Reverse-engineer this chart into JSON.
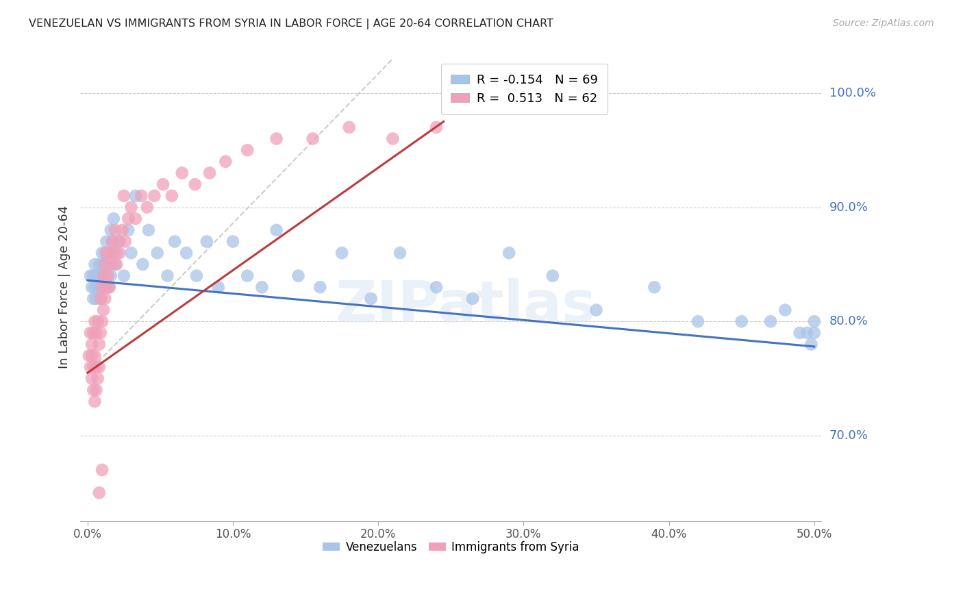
{
  "title": "VENEZUELAN VS IMMIGRANTS FROM SYRIA IN LABOR FORCE | AGE 20-64 CORRELATION CHART",
  "source": "Source: ZipAtlas.com",
  "ylabel": "In Labor Force | Age 20-64",
  "xlim": [
    -0.005,
    0.505
  ],
  "ylim": [
    0.625,
    1.035
  ],
  "xticks": [
    0.0,
    0.1,
    0.2,
    0.3,
    0.4,
    0.5
  ],
  "xticklabels": [
    "0.0%",
    "10.0%",
    "20.0%",
    "30.0%",
    "40.0%",
    "50.0%"
  ],
  "ytick_positions": [
    0.7,
    0.8,
    0.9,
    1.0
  ],
  "ytick_labels": [
    "70.0%",
    "80.0%",
    "90.0%",
    "100.0%"
  ],
  "legend_R1": "-0.154",
  "legend_N1": "69",
  "legend_R2": "0.513",
  "legend_N2": "62",
  "venezuelan_color": "#a8c4e8",
  "syria_color": "#f0a0b8",
  "trend_venezuelan_color": "#4472c4",
  "trend_syria_color": "#c0393b",
  "watermark": "ZIPatlas",
  "venezuelan_x": [
    0.002,
    0.003,
    0.004,
    0.004,
    0.005,
    0.005,
    0.006,
    0.006,
    0.007,
    0.007,
    0.008,
    0.008,
    0.009,
    0.009,
    0.01,
    0.01,
    0.011,
    0.011,
    0.012,
    0.012,
    0.013,
    0.013,
    0.014,
    0.015,
    0.015,
    0.016,
    0.016,
    0.017,
    0.018,
    0.019,
    0.02,
    0.022,
    0.025,
    0.028,
    0.03,
    0.033,
    0.038,
    0.042,
    0.048,
    0.055,
    0.06,
    0.068,
    0.075,
    0.082,
    0.09,
    0.1,
    0.11,
    0.12,
    0.13,
    0.145,
    0.16,
    0.175,
    0.195,
    0.215,
    0.24,
    0.265,
    0.29,
    0.32,
    0.35,
    0.39,
    0.42,
    0.45,
    0.47,
    0.48,
    0.49,
    0.495,
    0.498,
    0.5,
    0.5
  ],
  "venezuelan_y": [
    0.84,
    0.83,
    0.82,
    0.84,
    0.83,
    0.85,
    0.84,
    0.82,
    0.84,
    0.83,
    0.85,
    0.83,
    0.84,
    0.82,
    0.86,
    0.83,
    0.85,
    0.84,
    0.86,
    0.83,
    0.87,
    0.85,
    0.84,
    0.86,
    0.83,
    0.88,
    0.84,
    0.87,
    0.89,
    0.85,
    0.86,
    0.87,
    0.84,
    0.88,
    0.86,
    0.91,
    0.85,
    0.88,
    0.86,
    0.84,
    0.87,
    0.86,
    0.84,
    0.87,
    0.83,
    0.87,
    0.84,
    0.83,
    0.88,
    0.84,
    0.83,
    0.86,
    0.82,
    0.86,
    0.83,
    0.82,
    0.86,
    0.84,
    0.81,
    0.83,
    0.8,
    0.8,
    0.8,
    0.81,
    0.79,
    0.79,
    0.78,
    0.8,
    0.79
  ],
  "syria_x": [
    0.001,
    0.002,
    0.002,
    0.003,
    0.003,
    0.003,
    0.004,
    0.004,
    0.004,
    0.005,
    0.005,
    0.005,
    0.006,
    0.006,
    0.006,
    0.007,
    0.007,
    0.008,
    0.008,
    0.009,
    0.009,
    0.01,
    0.01,
    0.011,
    0.011,
    0.012,
    0.012,
    0.013,
    0.013,
    0.014,
    0.015,
    0.015,
    0.016,
    0.017,
    0.018,
    0.019,
    0.02,
    0.021,
    0.022,
    0.024,
    0.026,
    0.028,
    0.03,
    0.033,
    0.037,
    0.041,
    0.046,
    0.052,
    0.058,
    0.065,
    0.074,
    0.084,
    0.095,
    0.11,
    0.13,
    0.155,
    0.18,
    0.21,
    0.24,
    0.025,
    0.01,
    0.008
  ],
  "syria_y": [
    0.77,
    0.79,
    0.76,
    0.78,
    0.75,
    0.77,
    0.76,
    0.79,
    0.74,
    0.77,
    0.8,
    0.73,
    0.76,
    0.74,
    0.79,
    0.75,
    0.8,
    0.78,
    0.76,
    0.79,
    0.82,
    0.8,
    0.83,
    0.81,
    0.84,
    0.82,
    0.85,
    0.83,
    0.86,
    0.84,
    0.86,
    0.83,
    0.85,
    0.87,
    0.86,
    0.88,
    0.85,
    0.87,
    0.86,
    0.88,
    0.87,
    0.89,
    0.9,
    0.89,
    0.91,
    0.9,
    0.91,
    0.92,
    0.91,
    0.93,
    0.92,
    0.93,
    0.94,
    0.95,
    0.96,
    0.96,
    0.97,
    0.96,
    0.97,
    0.91,
    0.67,
    0.65
  ]
}
